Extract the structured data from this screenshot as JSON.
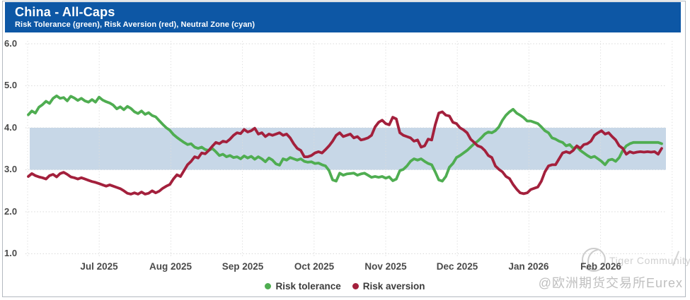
{
  "header": {
    "title": "China - All-Caps",
    "subtitle": "Risk Tolerance (green), Risk Aversion (red), Neutral Zone (cyan)"
  },
  "colors": {
    "header_bg": "#0d57a5",
    "neutral_zone": "#c7d7e7",
    "risk_tolerance": "#4fad51",
    "risk_aversion": "#a3203c",
    "grid": "#d5d5d5",
    "frame_border": "#b4bac0"
  },
  "legend": [
    {
      "label": "Risk tolerance",
      "color": "#4fad51"
    },
    {
      "label": "Risk aversion",
      "color": "#a3203c"
    }
  ],
  "watermark": {
    "community": "Tiger Community",
    "handle": "@欧洲期货交易所Eurex",
    "logo": "tiger-circle-logo"
  },
  "chart_data": {
    "type": "line",
    "title": "China - All-Caps",
    "subtitle": "Risk Tolerance (green), Risk Aversion (red), Neutral Zone (cyan)",
    "ylim": [
      1.0,
      6.0
    ],
    "y_ticks": [
      6.0,
      5.0,
      4.0,
      3.0,
      2.0,
      1.0
    ],
    "y_tick_labels": [
      "6.0",
      "5.0",
      "4.0",
      "3.0",
      "2.0",
      "1.0"
    ],
    "x_ticks": [
      "Jul 2025",
      "Aug 2025",
      "Sep 2025",
      "Oct 2025",
      "Nov 2025",
      "Dec 2025",
      "Jan 2026",
      "Feb 2026"
    ],
    "x_start": "mid-Jun 2025",
    "x_end": "late Feb 2026",
    "grid": "dotted",
    "legend_position": "bottom-center",
    "neutral_zone": {
      "from": 3.0,
      "to": 4.0,
      "color": "#c7d7e7"
    },
    "sampling": "values uniformly spaced in time from x_start to x_end (~daily)",
    "series": [
      {
        "name": "Risk tolerance",
        "color": "#4fad51",
        "values": [
          4.31,
          4.4,
          4.35,
          4.49,
          4.55,
          4.63,
          4.58,
          4.7,
          4.76,
          4.7,
          4.72,
          4.64,
          4.75,
          4.71,
          4.65,
          4.7,
          4.64,
          4.61,
          4.67,
          4.61,
          4.73,
          4.66,
          4.62,
          4.59,
          4.54,
          4.45,
          4.5,
          4.43,
          4.51,
          4.46,
          4.38,
          4.34,
          4.4,
          4.32,
          4.36,
          4.29,
          4.26,
          4.17,
          4.08,
          4.0,
          3.94,
          3.84,
          3.77,
          3.71,
          3.65,
          3.6,
          3.62,
          3.54,
          3.51,
          3.54,
          3.48,
          3.46,
          3.51,
          3.43,
          3.34,
          3.37,
          3.31,
          3.34,
          3.29,
          3.31,
          3.26,
          3.33,
          3.28,
          3.32,
          3.25,
          3.31,
          3.26,
          3.19,
          3.28,
          3.23,
          3.14,
          3.11,
          3.26,
          3.23,
          3.29,
          3.26,
          3.23,
          3.26,
          3.2,
          3.18,
          3.19,
          3.15,
          3.16,
          3.12,
          3.09,
          2.98,
          2.76,
          2.73,
          2.92,
          2.87,
          2.9,
          2.91,
          2.92,
          2.87,
          2.9,
          2.92,
          2.87,
          2.82,
          2.84,
          2.82,
          2.84,
          2.8,
          2.83,
          2.74,
          2.78,
          2.98,
          3.01,
          3.09,
          3.2,
          3.26,
          3.23,
          3.26,
          3.2,
          3.15,
          3.12,
          2.95,
          2.76,
          2.73,
          2.84,
          3.06,
          3.15,
          3.29,
          3.34,
          3.4,
          3.46,
          3.54,
          3.62,
          3.68,
          3.76,
          3.85,
          3.9,
          3.88,
          3.93,
          4.02,
          4.18,
          4.3,
          4.38,
          4.44,
          4.35,
          4.3,
          4.24,
          4.16,
          4.16,
          4.13,
          4.1,
          4.02,
          3.93,
          3.88,
          3.76,
          3.73,
          3.68,
          3.65,
          3.57,
          3.6,
          3.51,
          3.55,
          3.46,
          3.4,
          3.34,
          3.29,
          3.32,
          3.26,
          3.2,
          3.12,
          3.23,
          3.25,
          3.2,
          3.29,
          3.46,
          3.57,
          3.62,
          3.65,
          3.65,
          3.65,
          3.65,
          3.65,
          3.65,
          3.65,
          3.65,
          3.62
        ]
      },
      {
        "name": "Risk aversion",
        "color": "#a3203c",
        "values": [
          2.84,
          2.91,
          2.86,
          2.83,
          2.81,
          2.78,
          2.86,
          2.89,
          2.83,
          2.91,
          2.94,
          2.89,
          2.83,
          2.81,
          2.78,
          2.81,
          2.78,
          2.75,
          2.72,
          2.7,
          2.67,
          2.64,
          2.61,
          2.64,
          2.61,
          2.58,
          2.55,
          2.5,
          2.44,
          2.42,
          2.45,
          2.42,
          2.47,
          2.42,
          2.44,
          2.5,
          2.45,
          2.49,
          2.56,
          2.61,
          2.65,
          2.78,
          2.88,
          2.84,
          2.98,
          3.12,
          3.2,
          3.31,
          3.28,
          3.4,
          3.38,
          3.46,
          3.56,
          3.65,
          3.62,
          3.68,
          3.66,
          3.73,
          3.82,
          3.88,
          3.86,
          3.96,
          3.9,
          3.93,
          3.99,
          3.85,
          3.88,
          3.79,
          3.85,
          3.82,
          3.85,
          3.88,
          3.82,
          3.85,
          3.76,
          3.62,
          3.51,
          3.46,
          3.31,
          3.31,
          3.34,
          3.4,
          3.43,
          3.4,
          3.48,
          3.57,
          3.68,
          3.82,
          3.88,
          3.79,
          3.82,
          3.85,
          3.76,
          3.79,
          3.71,
          3.73,
          3.76,
          3.82,
          4.02,
          4.13,
          4.18,
          4.1,
          4.07,
          4.25,
          4.21,
          3.88,
          3.82,
          3.79,
          3.76,
          3.68,
          3.71,
          3.54,
          3.57,
          3.73,
          3.71,
          4.07,
          4.35,
          4.38,
          4.3,
          4.28,
          4.13,
          4.1,
          4.0,
          3.95,
          3.88,
          3.73,
          3.65,
          3.57,
          3.54,
          3.46,
          3.34,
          3.29,
          3.09,
          3.01,
          2.95,
          2.84,
          2.79,
          2.65,
          2.54,
          2.45,
          2.43,
          2.45,
          2.53,
          2.56,
          2.59,
          2.73,
          2.95,
          3.09,
          3.12,
          3.12,
          3.26,
          3.4,
          3.43,
          3.4,
          3.46,
          3.57,
          3.51,
          3.6,
          3.62,
          3.68,
          3.82,
          3.88,
          3.93,
          3.85,
          3.88,
          3.79,
          3.71,
          3.57,
          3.51,
          3.37,
          3.43,
          3.4,
          3.42,
          3.43,
          3.42,
          3.43,
          3.42,
          3.43,
          3.37,
          3.51
        ]
      }
    ]
  }
}
